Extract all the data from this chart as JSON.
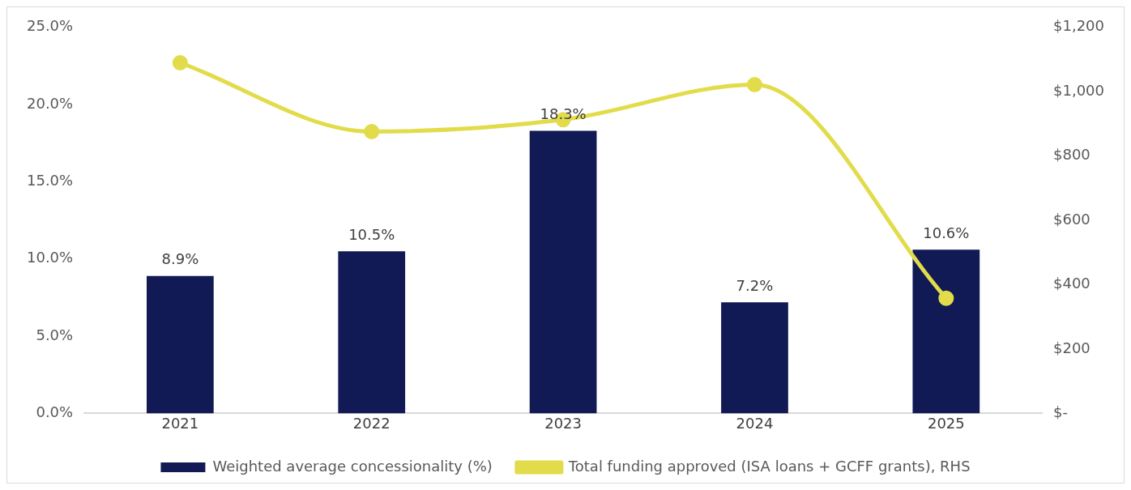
{
  "chart_data": {
    "type": "bar",
    "categories": [
      "2021",
      "2022",
      "2023",
      "2024",
      "2025"
    ],
    "series": [
      {
        "name": "Weighted average concessionality (%)",
        "color": "#121a56",
        "values": [
          8.9,
          10.5,
          18.3,
          7.2,
          10.6
        ],
        "value_labels": [
          "8.9%",
          "10.5%",
          "18.3%",
          "7.2%",
          "10.6%"
        ]
      },
      {
        "type": "line",
        "name": "Total funding approved (ISA loans + GCFF grants), RHS",
        "color": "#e2dc4b",
        "axis": "y2",
        "values": [
          1090,
          876,
          913,
          1022,
          358
        ]
      }
    ],
    "ylim": [
      0,
      25
    ],
    "yticks": [
      {
        "value": 0,
        "label": "0.0%"
      },
      {
        "value": 5,
        "label": "5.0%"
      },
      {
        "value": 10,
        "label": "10.0%"
      },
      {
        "value": 15,
        "label": "15.0%"
      },
      {
        "value": 20,
        "label": "20.0%"
      },
      {
        "value": 25,
        "label": "25.0%"
      }
    ],
    "y2lim": [
      0,
      1200
    ],
    "y2ticks": [
      {
        "value": 0,
        "label": "$-"
      },
      {
        "value": 200,
        "label": "$200"
      },
      {
        "value": 400,
        "label": "$400"
      },
      {
        "value": 600,
        "label": "$600"
      },
      {
        "value": 800,
        "label": "$800"
      },
      {
        "value": 1000,
        "label": "$1,000"
      },
      {
        "value": 1200,
        "label": "$1,200"
      }
    ],
    "grid": false,
    "legend": "bottom",
    "marker": "circle"
  }
}
